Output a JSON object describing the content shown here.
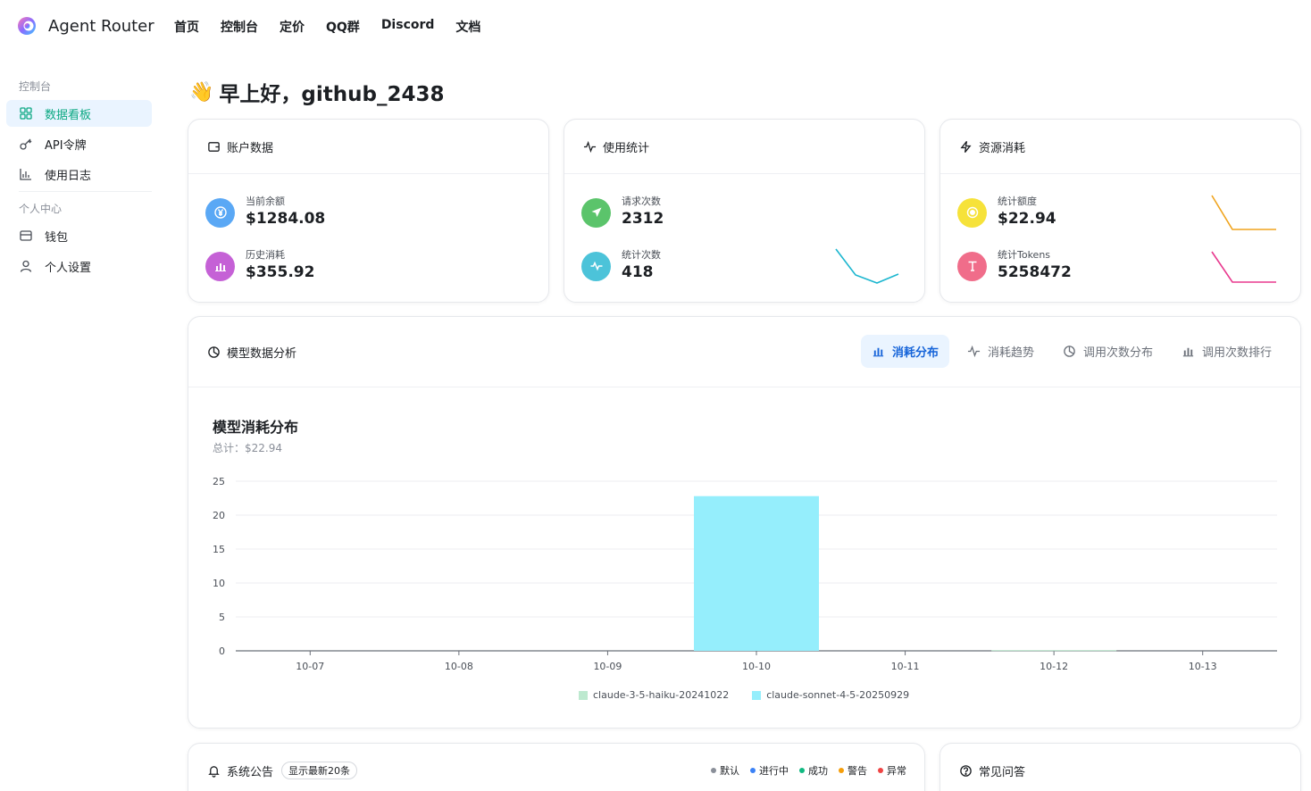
{
  "brand": "Agent Router",
  "nav": [
    "首页",
    "控制台",
    "定价",
    "QQ群",
    "Discord",
    "文档"
  ],
  "sidebar": {
    "section1": "控制台",
    "items1": [
      {
        "label": "数据看板",
        "icon": "dashboard-icon",
        "active": true
      },
      {
        "label": "API令牌",
        "icon": "key-icon"
      },
      {
        "label": "使用日志",
        "icon": "bar-chart-icon"
      }
    ],
    "section2": "个人中心",
    "items2": [
      {
        "label": "钱包",
        "icon": "wallet-icon"
      },
      {
        "label": "个人设置",
        "icon": "user-icon"
      }
    ]
  },
  "greeting": "早上好，github_2438",
  "account": {
    "title": "账户数据",
    "balance_label": "当前余额",
    "balance_value": "$1284.08",
    "history_label": "历史消耗",
    "history_value": "$355.92"
  },
  "usage": {
    "title": "使用统计",
    "requests_label": "请求次数",
    "requests_value": "2312",
    "count_label": "统计次数",
    "count_value": "418"
  },
  "resource": {
    "title": "资源消耗",
    "quota_label": "统计额度",
    "quota_value": "$22.94",
    "tokens_label": "统计Tokens",
    "tokens_value": "5258472"
  },
  "analysis": {
    "title": "模型数据分析",
    "tabs": [
      "消耗分布",
      "消耗趋势",
      "调用次数分布",
      "调用次数排行"
    ],
    "chart_title": "模型消耗分布",
    "chart_subtitle": "总计：$22.94"
  },
  "chart_data": {
    "type": "bar",
    "title": "模型消耗分布",
    "subtitle": "总计：$22.94",
    "categories": [
      "10-07",
      "10-08",
      "10-09",
      "10-10",
      "10-11",
      "10-12",
      "10-13"
    ],
    "series": [
      {
        "name": "claude-3-5-haiku-20241022",
        "color": "#bde9cf",
        "values": [
          0,
          0,
          0,
          0,
          0,
          0.1,
          0
        ]
      },
      {
        "name": "claude-sonnet-4-5-20250929",
        "color": "#95eefc",
        "values": [
          0,
          0,
          0,
          22.8,
          0,
          0,
          0
        ]
      }
    ],
    "yticks": [
      0,
      5,
      10,
      15,
      20,
      25
    ],
    "ylim": [
      0,
      25
    ],
    "grid": true,
    "legend": "bottom-center",
    "stacked": true
  },
  "announce": {
    "title": "系统公告",
    "tag": "显示最新20条",
    "statuses": [
      {
        "label": "默认",
        "color": "#8a8f99"
      },
      {
        "label": "进行中",
        "color": "#3b82f6"
      },
      {
        "label": "成功",
        "color": "#10b981"
      },
      {
        "label": "警告",
        "color": "#f59e0b"
      },
      {
        "label": "异常",
        "color": "#ef4444"
      }
    ]
  },
  "faq": {
    "title": "常见问答"
  },
  "colors": {
    "accent": "#0aa882",
    "tab_active": "#1664d9",
    "bar_sonnet": "#95eefc",
    "bar_haiku": "#bde9cf",
    "spark_teal": "#1bb6cf",
    "spark_orange": "#f0a41e",
    "spark_pink": "#e8398e"
  }
}
